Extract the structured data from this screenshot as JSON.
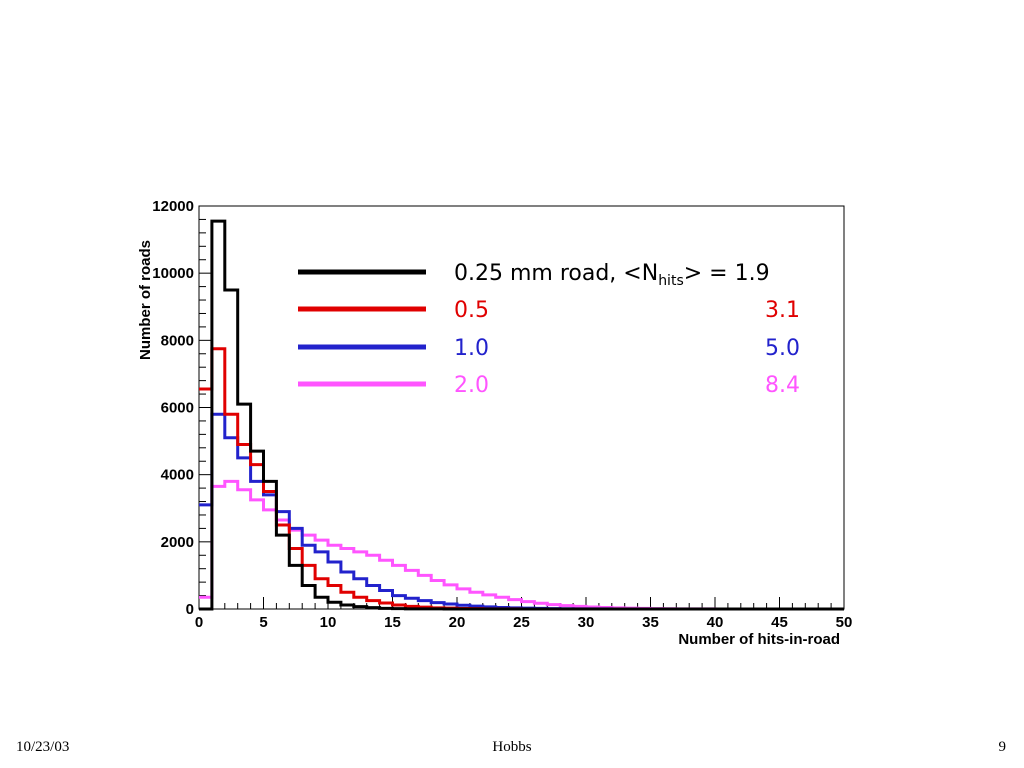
{
  "chart_data": {
    "type": "histogram",
    "xlabel": "Number of hits-in-road",
    "ylabel": "Number of roads",
    "xlim": [
      0,
      50
    ],
    "ylim": [
      0,
      12000
    ],
    "x_ticks": [
      "0",
      "5",
      "10",
      "15",
      "20",
      "25",
      "30",
      "35",
      "40",
      "45",
      "50"
    ],
    "y_ticks": [
      "0",
      "2000",
      "4000",
      "6000",
      "8000",
      "10000",
      "12000"
    ],
    "bin_width": 1,
    "grid": false,
    "legend_placement": "top-right",
    "series": [
      {
        "name": "0.25 mm road, <Nhits> = 1.9",
        "color": "#000000",
        "values": [
          0,
          11550,
          9500,
          6100,
          4700,
          3800,
          2200,
          1300,
          700,
          350,
          200,
          120,
          70,
          40,
          20,
          10,
          5,
          3,
          2,
          1,
          0,
          0,
          0,
          0,
          0,
          0,
          0,
          0,
          0,
          0,
          0,
          0,
          0,
          0,
          0,
          0,
          0,
          0,
          0,
          0,
          0,
          0,
          0,
          0,
          0,
          0,
          0,
          0,
          0,
          0
        ]
      },
      {
        "name": "0.5",
        "color": "#e00000",
        "values": [
          6550,
          7750,
          5800,
          4900,
          4300,
          3500,
          2500,
          1800,
          1300,
          900,
          700,
          500,
          350,
          250,
          180,
          120,
          80,
          55,
          35,
          25,
          15,
          10,
          5,
          3,
          2,
          1,
          0,
          0,
          0,
          0,
          0,
          0,
          0,
          0,
          0,
          0,
          0,
          0,
          0,
          0,
          0,
          0,
          0,
          0,
          0,
          0,
          0,
          0,
          0,
          0
        ]
      },
      {
        "name": "1.0",
        "color": "#2222cc",
        "values": [
          3100,
          5800,
          5100,
          4500,
          3800,
          3400,
          2900,
          2400,
          1900,
          1700,
          1400,
          1100,
          900,
          700,
          550,
          400,
          320,
          250,
          190,
          150,
          110,
          85,
          65,
          45,
          35,
          25,
          18,
          12,
          8,
          5,
          3,
          2,
          1,
          0,
          0,
          0,
          0,
          0,
          0,
          0,
          0,
          0,
          0,
          0,
          0,
          0,
          0,
          0,
          0,
          0
        ]
      },
      {
        "name": "2.0",
        "color": "#ff55ff",
        "values": [
          350,
          3650,
          3800,
          3550,
          3250,
          2950,
          2650,
          2350,
          2200,
          2050,
          1900,
          1800,
          1700,
          1600,
          1450,
          1300,
          1150,
          1000,
          850,
          720,
          600,
          500,
          420,
          350,
          280,
          220,
          170,
          130,
          100,
          80,
          60,
          45,
          35,
          25,
          18,
          12,
          8,
          5,
          3,
          2,
          1,
          0,
          0,
          0,
          0,
          0,
          0,
          0,
          0,
          0
        ]
      }
    ],
    "legend": [
      {
        "road": "0.25 mm road, <N",
        "sub": "hits",
        "suffix": "> = 1.9",
        "mean": "",
        "color": "#000000"
      },
      {
        "road": "0.5",
        "sub": "",
        "suffix": "",
        "mean": "3.1",
        "color": "#e00000"
      },
      {
        "road": " 1.0",
        "sub": "",
        "suffix": "",
        "mean": "5.0",
        "color": "#2222cc"
      },
      {
        "road": "2.0",
        "sub": "",
        "suffix": "",
        "mean": "8.4",
        "color": "#ff55ff"
      }
    ]
  },
  "footer": {
    "date": "10/23/03",
    "author": "Hobbs",
    "page": "9"
  }
}
